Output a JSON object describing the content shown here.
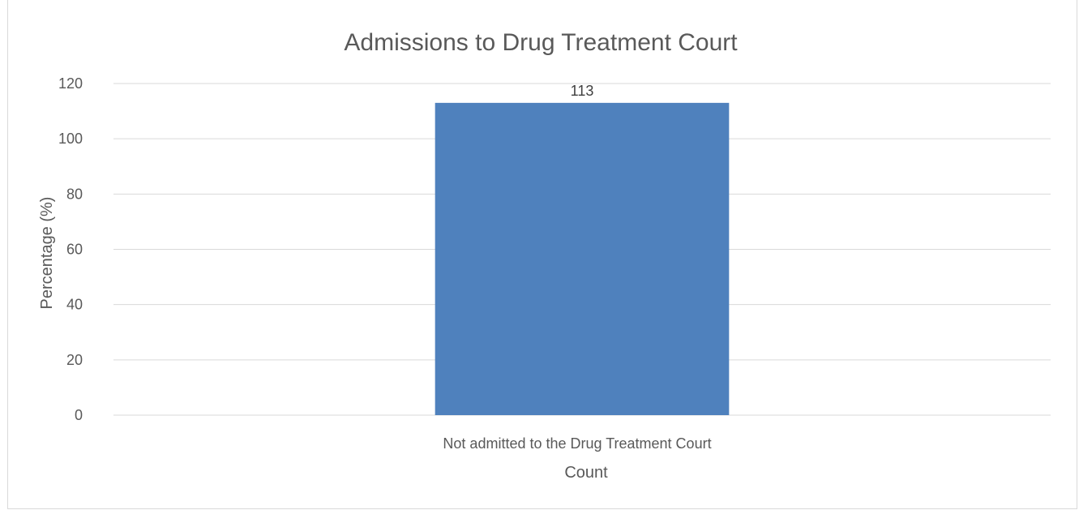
{
  "chart_data": {
    "type": "bar",
    "title": "Admissions to Drug Treatment Court",
    "xlabel": "Count",
    "ylabel": "Percentage (%)",
    "categories": [
      "Not admitted to the Drug Treatment Court"
    ],
    "values": [
      113
    ],
    "data_labels": [
      "113"
    ],
    "ylim": [
      0,
      120
    ],
    "yticks": [
      0,
      20,
      40,
      60,
      80,
      100,
      120
    ],
    "grid": true,
    "legend": "none",
    "bar_color": "#4f81bd"
  }
}
